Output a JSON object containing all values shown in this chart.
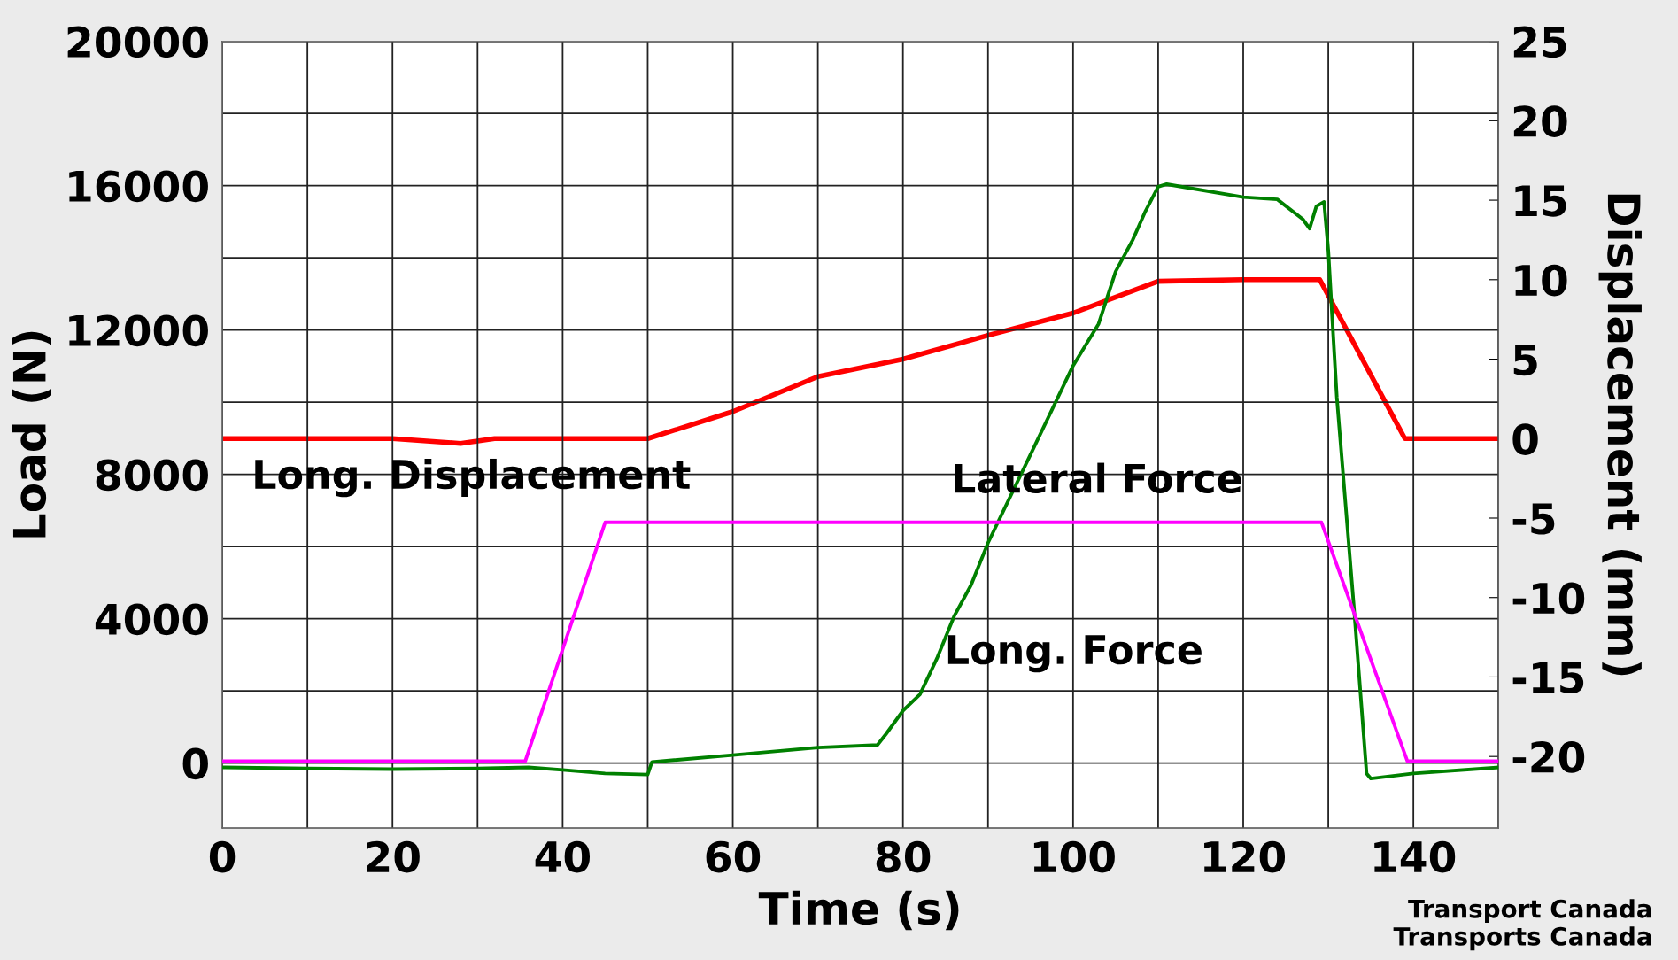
{
  "chart_data": {
    "type": "line",
    "xlabel": "Time (s)",
    "ylabel": "Load (N)",
    "y2label": "Displacement (mm)",
    "xlim": [
      0,
      150
    ],
    "xticks": [
      0,
      {
        "value": 10,
        "label": null
      },
      20,
      {
        "value": 30,
        "label": null
      },
      40,
      {
        "value": 50,
        "label": null
      },
      60,
      {
        "value": 70,
        "label": null
      },
      80,
      {
        "value": 90,
        "label": null
      },
      100,
      {
        "value": 110,
        "label": null
      },
      120,
      {
        "value": 130,
        "label": null
      },
      140,
      {
        "value": 150,
        "label": null
      }
    ],
    "ylim": [
      -1800,
      20000
    ],
    "yticks": [
      0,
      {
        "value": 2000,
        "label": null
      },
      4000,
      {
        "value": 6000,
        "label": null
      },
      8000,
      {
        "value": 10000,
        "label": null
      },
      12000,
      {
        "value": 14000,
        "label": null
      },
      16000,
      {
        "value": 18000,
        "label": null
      },
      20000
    ],
    "y2lim": [
      -24.5,
      25
    ],
    "y2ticks": [
      -20,
      -15,
      -10,
      -5,
      0,
      5,
      10,
      15,
      20,
      25
    ],
    "grid": true,
    "line_style": "solid",
    "series": [
      {
        "name": "Long. Displacement",
        "color": "#ff0000",
        "axis": "y2",
        "x": [
          0,
          20,
          28,
          32,
          50,
          60,
          70,
          80,
          90,
          100,
          110,
          120,
          129,
          139,
          150
        ],
        "values": [
          0,
          0,
          -0.3,
          0,
          0,
          1.7,
          3.9,
          5.0,
          6.5,
          7.9,
          9.9,
          10,
          10,
          0,
          0
        ]
      },
      {
        "name": "Long. Force",
        "color": "#008000",
        "axis": "y",
        "x": [
          0,
          10,
          20,
          30,
          36,
          40,
          45,
          50,
          50.5,
          60,
          70,
          77,
          78,
          80,
          82,
          84,
          86,
          88,
          90,
          95,
          100,
          103,
          105,
          107,
          108.5,
          110,
          111,
          120,
          124,
          127,
          127.8,
          128.6,
          129.5,
          130,
          131,
          133,
          134.5,
          135,
          140,
          150
        ],
        "values": [
          -120,
          -150,
          -170,
          -150,
          -120,
          -190,
          -290,
          -320,
          30,
          220,
          430,
          500,
          800,
          1450,
          1900,
          2900,
          4060,
          4930,
          6100,
          8550,
          11010,
          12170,
          13620,
          14490,
          15290,
          15970,
          16040,
          15680,
          15620,
          15070,
          14810,
          15430,
          15550,
          14200,
          10140,
          4350,
          -290,
          -430,
          -290,
          -120
        ]
      },
      {
        "name": "Lateral Force",
        "color": "#ff00ff",
        "axis": "y",
        "x": [
          0,
          35.6,
          45,
          129.2,
          139.3,
          150
        ],
        "values": [
          50,
          50,
          6670,
          6670,
          50,
          50
        ]
      }
    ],
    "annotations": [
      "Transport Canada\nTransports Canada"
    ]
  }
}
